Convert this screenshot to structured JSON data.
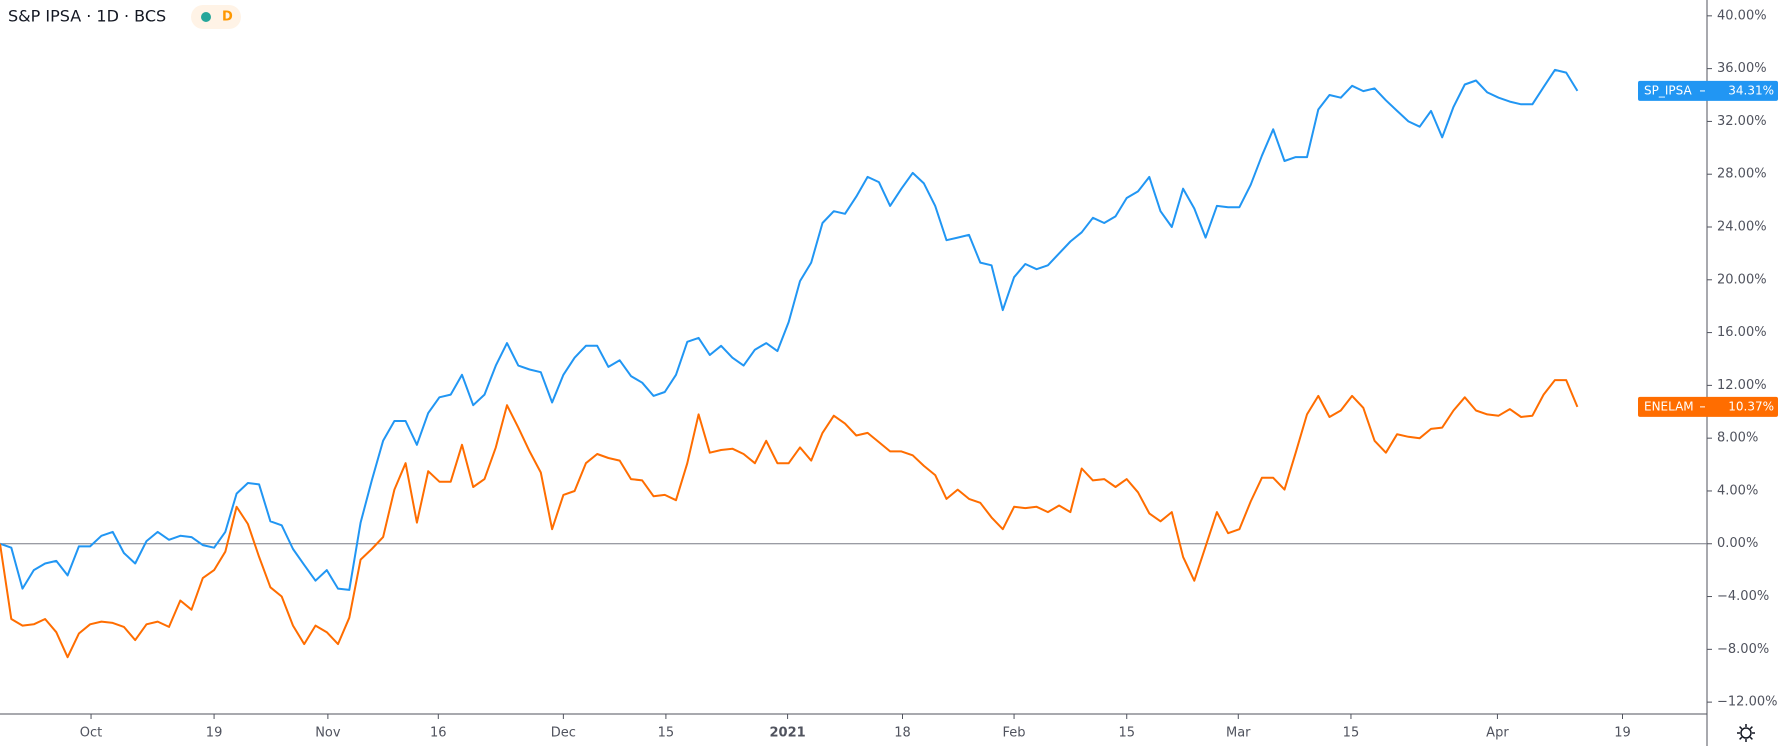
{
  "chart_data": {
    "type": "line",
    "title": "S&P IPSA · 1D · BCS",
    "legend_badge": "D",
    "xlim": [
      0,
      151.5
    ],
    "xticks": [
      {
        "value": 8.08,
        "label": "Oct"
      },
      {
        "value": 19,
        "label": "19"
      },
      {
        "value": 29.1,
        "label": "Nov"
      },
      {
        "value": 38.9,
        "label": "16"
      },
      {
        "value": 50,
        "label": "Dec"
      },
      {
        "value": 59.1,
        "label": "15"
      },
      {
        "value": 69.9,
        "label": "2021"
      },
      {
        "value": 80.1,
        "label": "18"
      },
      {
        "value": 90,
        "label": "Feb"
      },
      {
        "value": 100,
        "label": "15"
      },
      {
        "value": 109.9,
        "label": "Mar"
      },
      {
        "value": 119.9,
        "label": "15"
      },
      {
        "value": 132.9,
        "label": "Apr"
      },
      {
        "value": 144,
        "label": "19"
      }
    ],
    "ylim": [
      -12.9,
      41.2
    ],
    "yticks": [
      {
        "value": 40,
        "label": "40.00%"
      },
      {
        "value": 36,
        "label": "36.00%"
      },
      {
        "value": 32,
        "label": "32.00%"
      },
      {
        "value": 28,
        "label": "28.00%"
      },
      {
        "value": 24,
        "label": "24.00%"
      },
      {
        "value": 20,
        "label": "20.00%"
      },
      {
        "value": 16,
        "label": "16.00%"
      },
      {
        "value": 12,
        "label": "12.00%"
      },
      {
        "value": 8,
        "label": "8.00%"
      },
      {
        "value": 4,
        "label": "4.00%"
      },
      {
        "value": 0,
        "label": "0.00%"
      },
      {
        "value": -4,
        "label": "−4.00%"
      },
      {
        "value": -8,
        "label": "−8.00%"
      },
      {
        "value": -12,
        "label": "−12.00%"
      }
    ],
    "baseline": 0,
    "grid": false,
    "series": [
      {
        "name": "SP_IPSA",
        "color": "#2196f3",
        "last_value_label": "34.31%",
        "values": [
          0,
          -0.3,
          -3.4,
          -2,
          -1.5,
          -1.3,
          -2.4,
          -0.2,
          -0.2,
          0.6,
          0.9,
          -0.7,
          -1.5,
          0.2,
          0.9,
          0.3,
          0.6,
          0.5,
          -0.1,
          -0.3,
          0.9,
          3.8,
          4.6,
          4.5,
          1.7,
          1.4,
          -0.4,
          -1.6,
          -2.8,
          -2,
          -3.4,
          -3.5,
          1.6,
          4.8,
          7.8,
          9.3,
          9.3,
          7.5,
          9.9,
          11.1,
          11.3,
          12.8,
          10.5,
          11.3,
          13.5,
          15.2,
          13.5,
          13.2,
          13,
          10.7,
          12.8,
          14.1,
          15,
          15,
          13.4,
          13.9,
          12.7,
          12.2,
          11.2,
          11.5,
          12.8,
          15.3,
          15.6,
          14.3,
          15,
          14.1,
          13.5,
          14.7,
          15.2,
          14.6,
          16.8,
          19.9,
          21.3,
          24.3,
          25.2,
          25,
          26.3,
          27.8,
          27.4,
          25.6,
          26.9,
          28.1,
          27.3,
          25.6,
          23,
          23.2,
          23.4,
          21.3,
          21.1,
          17.7,
          20.2,
          21.2,
          20.8,
          21.1,
          22,
          22.9,
          23.6,
          24.7,
          24.3,
          24.8,
          26.2,
          26.7,
          27.8,
          25.2,
          24,
          26.9,
          25.4,
          23.2,
          25.6,
          25.5,
          25.5,
          27.2,
          29.4,
          31.4,
          29,
          29.3,
          29.3,
          32.9,
          34,
          33.8,
          34.7,
          34.3,
          34.5,
          33.6,
          32.8,
          32,
          31.6,
          32.8,
          30.8,
          33.1,
          34.8,
          35.1,
          34.2,
          33.8,
          33.5,
          33.3,
          33.3,
          34.6,
          35.9,
          35.7,
          34.31
        ]
      },
      {
        "name": "ENELAM",
        "color": "#ff6d00",
        "last_value_label": "10.37%",
        "values": [
          0,
          -5.7,
          -6.2,
          -6.1,
          -5.7,
          -6.7,
          -8.6,
          -6.8,
          -6.1,
          -5.9,
          -6,
          -6.3,
          -7.3,
          -6.1,
          -5.9,
          -6.3,
          -4.3,
          -5,
          -2.6,
          -2,
          -0.6,
          2.8,
          1.5,
          -1,
          -3.3,
          -4,
          -6.2,
          -7.6,
          -6.2,
          -6.7,
          -7.6,
          -5.6,
          -1.2,
          -0.4,
          0.5,
          4.1,
          6.1,
          1.6,
          5.5,
          4.7,
          4.7,
          7.5,
          4.3,
          4.9,
          7.3,
          10.5,
          8.8,
          7,
          5.4,
          1.1,
          3.7,
          4,
          6.1,
          6.8,
          6.5,
          6.3,
          4.9,
          4.8,
          3.6,
          3.7,
          3.3,
          6.1,
          9.8,
          6.9,
          7.1,
          7.2,
          6.8,
          6.1,
          7.8,
          6.1,
          6.1,
          7.3,
          6.3,
          8.4,
          9.7,
          9.1,
          8.2,
          8.4,
          7.7,
          7,
          7,
          6.7,
          5.9,
          5.2,
          3.4,
          4.1,
          3.4,
          3.1,
          2,
          1.1,
          2.8,
          2.7,
          2.8,
          2.4,
          2.9,
          2.4,
          5.7,
          4.8,
          4.9,
          4.3,
          4.9,
          3.9,
          2.3,
          1.7,
          2.4,
          -1,
          -2.8,
          -0.2,
          2.4,
          0.8,
          1.1,
          3.2,
          5,
          5,
          4.1,
          6.9,
          9.8,
          11.2,
          9.6,
          10.1,
          11.2,
          10.3,
          7.8,
          6.9,
          8.3,
          8.1,
          8,
          8.7,
          8.8,
          10.1,
          11.1,
          10.1,
          9.8,
          9.7,
          10.2,
          9.6,
          9.7,
          11.3,
          12.4,
          12.4,
          10.37
        ]
      }
    ]
  }
}
